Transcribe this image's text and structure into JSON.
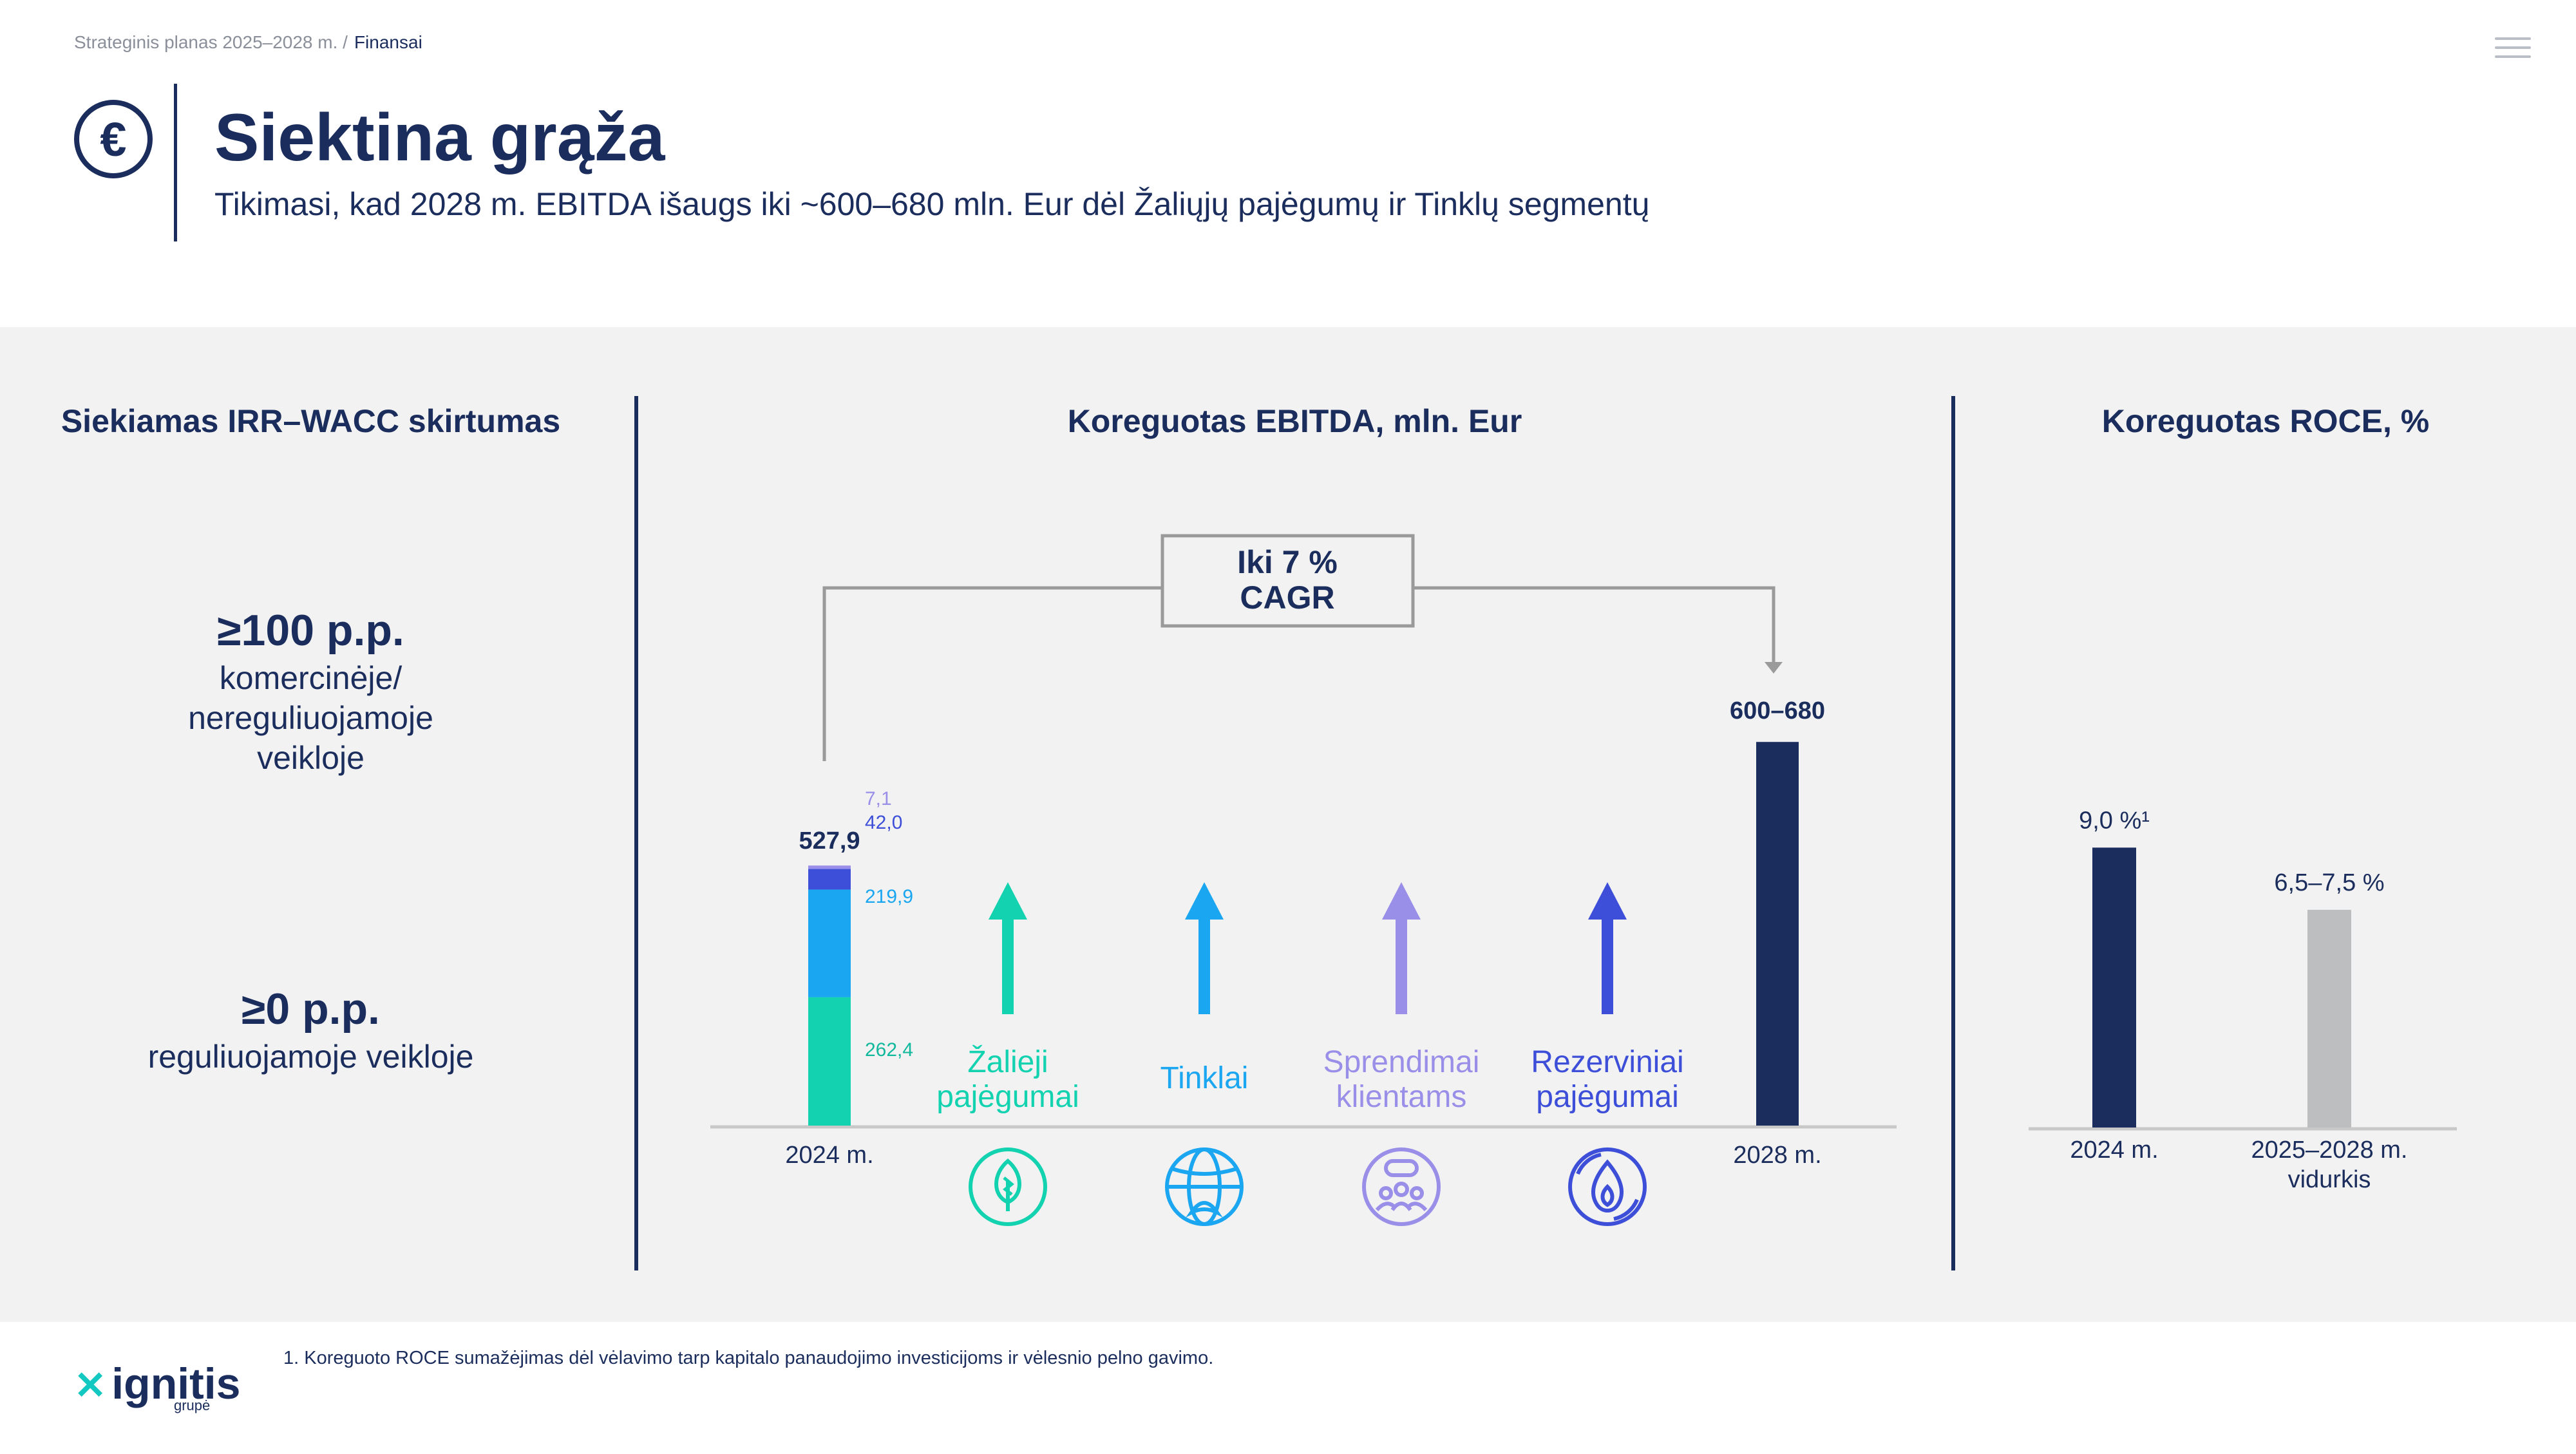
{
  "breadcrumb": {
    "parent": "Strateginis planas 2025–2028 m. /",
    "current": "Finansai"
  },
  "header": {
    "title": "Siektina grąža",
    "subtitle": "Tikimasi, kad 2028 m. EBITDA išaugs iki ~600–680 mln. Eur dėl Žaliųjų pajėgumų ir Tinklų segmentų",
    "icon": "euro-icon"
  },
  "irr": {
    "title": "Siekiamas IRR–WACC skirtumas",
    "items": [
      {
        "value": "≥100 p.p.",
        "desc": "komercinėje/ nereguliuojamoje veikloje"
      },
      {
        "value": "≥0 p.p.",
        "desc": "reguliuojamoje veikloje"
      }
    ]
  },
  "footnote": "1. Koreguoto ROCE sumažėjimas dėl vėlavimo tarp kapitalo panaudojimo investicijoms ir vėlesnio pelno gavimo.",
  "logo": {
    "name": "ignitis",
    "sub": "grupė"
  },
  "colors": {
    "navy": "#1b2d5c",
    "green": "#12d2b0",
    "lightblue": "#1aa6f0",
    "purple": "#9a8fe8",
    "indigo": "#3d4fd8",
    "grey": "#bcbec0",
    "panel": "#f2f2f2"
  },
  "chart_data": [
    {
      "type": "bar",
      "title": "Koreguotas EBITDA, mln. Eur",
      "annotation": "Iki 7 % CAGR",
      "bars": [
        {
          "category": "2024 m.",
          "total_label": "527,9",
          "segments": [
            {
              "name": "Žalieji pajėgumai",
              "value": 262.4,
              "label": "262,4",
              "color": "#12d2b0"
            },
            {
              "name": "Tinklai",
              "value": 219.9,
              "label": "219,9",
              "color": "#1aa6f0"
            },
            {
              "name": "Rezerviniai pajėgumai",
              "value": 42.0,
              "label": "42,0",
              "color": "#3d4fd8"
            },
            {
              "name": "Sprendimai klientams",
              "value": 7.1,
              "label": "7,1",
              "color": "#9a8fe8"
            }
          ]
        },
        {
          "category": "2028 m.",
          "total_label": "600–680",
          "value_low": 600,
          "value_high": 680,
          "color": "#1b2d5c"
        }
      ],
      "drivers": [
        {
          "label": "Žalieji pajėgumai",
          "color": "#12d2b0",
          "icon": "leaf-icon"
        },
        {
          "label": "Tinklai",
          "color": "#1aa6f0",
          "icon": "globe-icon"
        },
        {
          "label": "Sprendimai klientams",
          "color": "#9a8fe8",
          "icon": "people-icon"
        },
        {
          "label": "Rezerviniai pajėgumai",
          "color": "#3d4fd8",
          "icon": "flame-icon"
        }
      ]
    },
    {
      "type": "bar",
      "title": "Koreguotas ROCE, %",
      "categories": [
        "2024 m.",
        "2025–2028 m. vidurkis"
      ],
      "values": [
        9.0,
        7.0
      ],
      "value_labels": [
        "9,0 %¹",
        "6,5–7,5 %"
      ],
      "colors": [
        "#1b2d5c",
        "#bcbec0"
      ]
    }
  ]
}
